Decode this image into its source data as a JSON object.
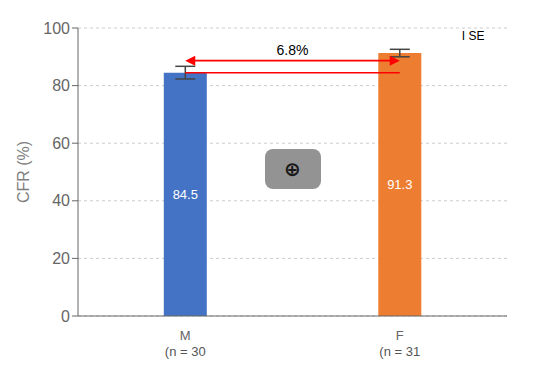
{
  "chart_data": {
    "type": "bar",
    "categories": [
      "M\n(n = 30",
      "F\n(n = 31"
    ],
    "values": [
      84.5,
      91.3
    ],
    "errors": [
      2.2,
      1.3
    ],
    "colors": [
      "#4472C4",
      "#ED7D31"
    ],
    "ylabel": "CFR (%)",
    "ylim": [
      0,
      100
    ],
    "yticks": [
      0,
      20,
      40,
      60,
      80,
      100
    ],
    "grid": true,
    "data_labels": true,
    "annotations": [
      "6.8%",
      "I SE",
      "⊕"
    ]
  }
}
